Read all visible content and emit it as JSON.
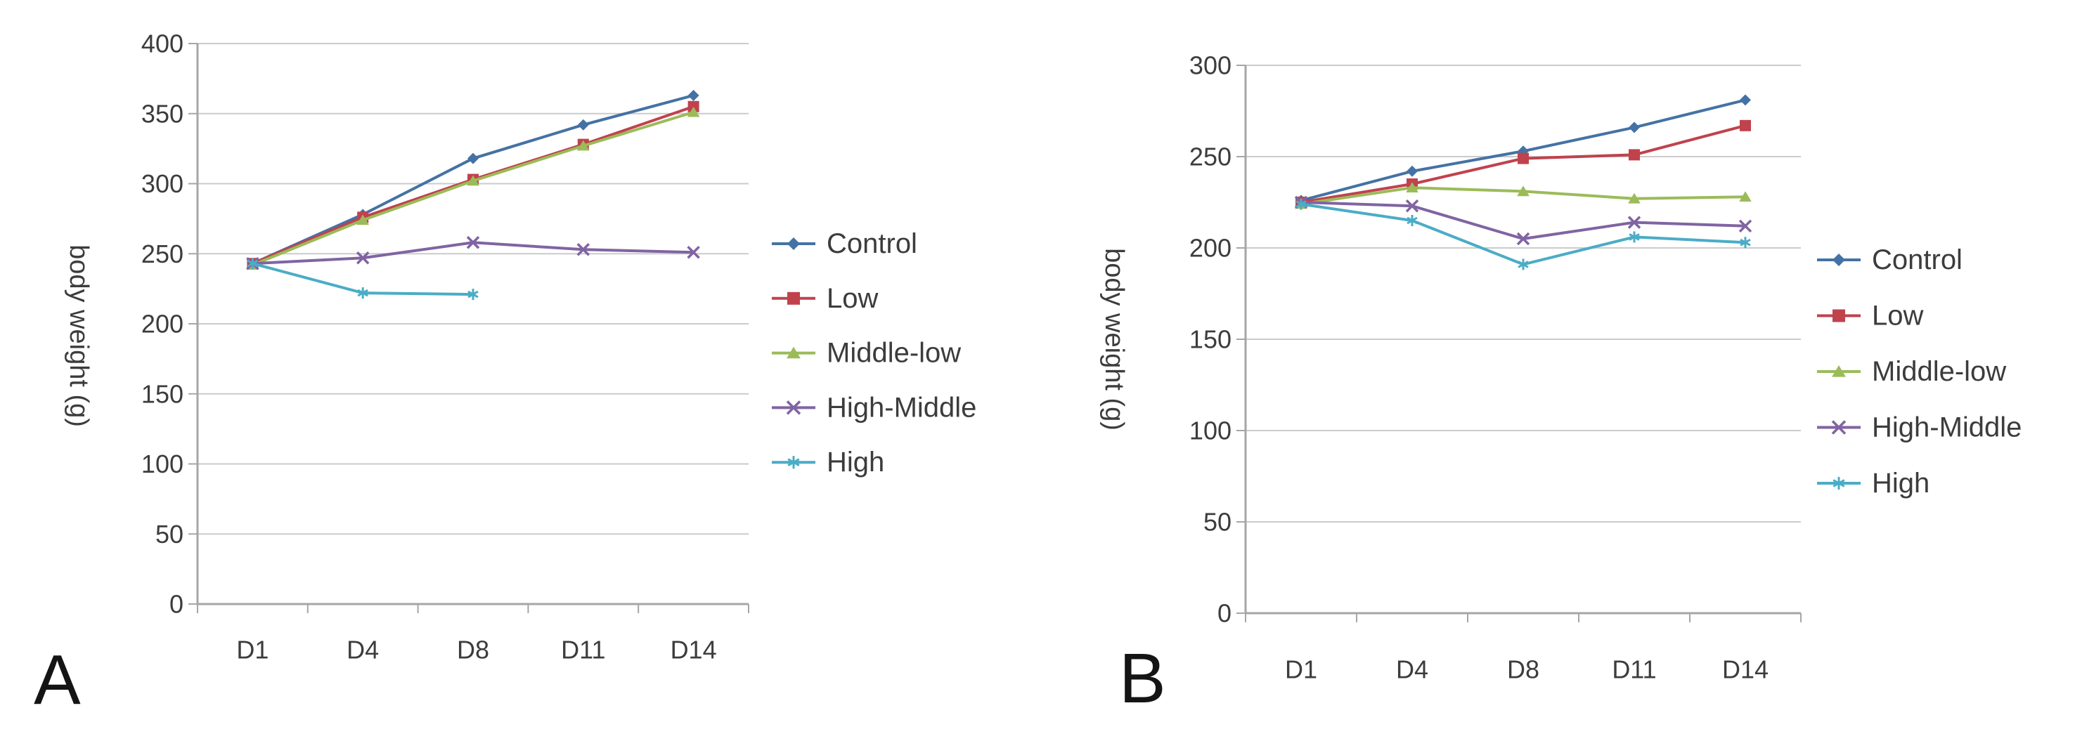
{
  "figure": {
    "background": "#ffffff",
    "text_color": "#3c3c3c",
    "grid_color": "#cbcbcb",
    "axis_color": "#a6a6a6",
    "panels": [
      {
        "label": "A",
        "chart_data": {
          "type": "line",
          "title": "",
          "xlabel": "",
          "ylabel": "body weight (g)",
          "categories": [
            "D1",
            "D4",
            "D8",
            "D11",
            "D14"
          ],
          "ylim": [
            0,
            400
          ],
          "ytick_step": 50,
          "yticks": [
            400,
            350,
            300,
            250,
            200,
            150,
            100,
            50,
            0
          ],
          "grid": true,
          "legend_position": "right",
          "series": [
            {
              "name": "Control",
              "color": "#4472A4",
              "marker": "diamond",
              "values": [
                243,
                278,
                318,
                342,
                363
              ]
            },
            {
              "name": "Low",
              "color": "#C0424D",
              "marker": "square",
              "values": [
                243,
                276,
                303,
                328,
                355
              ]
            },
            {
              "name": "Middle-low",
              "color": "#9BBB59",
              "marker": "triangle",
              "values": [
                242,
                274,
                302,
                327,
                351
              ]
            },
            {
              "name": "High-Middle",
              "color": "#8064A2",
              "marker": "x",
              "values": [
                243,
                247,
                258,
                253,
                251
              ]
            },
            {
              "name": "High",
              "color": "#4BACC6",
              "marker": "asterisk",
              "values": [
                243,
                222,
                221,
                null,
                null
              ]
            }
          ]
        }
      },
      {
        "label": "B",
        "chart_data": {
          "type": "line",
          "title": "",
          "xlabel": "",
          "ylabel": "body weight (g)",
          "categories": [
            "D1",
            "D4",
            "D8",
            "D11",
            "D14"
          ],
          "ylim": [
            0,
            300
          ],
          "ytick_step": 50,
          "yticks": [
            300,
            250,
            200,
            150,
            100,
            50,
            0
          ],
          "grid": true,
          "legend_position": "right",
          "series": [
            {
              "name": "Control",
              "color": "#4472A4",
              "marker": "diamond",
              "values": [
                226,
                242,
                253,
                266,
                281
              ]
            },
            {
              "name": "Low",
              "color": "#C0424D",
              "marker": "square",
              "values": [
                225,
                235,
                249,
                251,
                267
              ]
            },
            {
              "name": "Middle-low",
              "color": "#9BBB59",
              "marker": "triangle",
              "values": [
                224,
                233,
                231,
                227,
                228
              ]
            },
            {
              "name": "High-Middle",
              "color": "#8064A2",
              "marker": "x",
              "values": [
                225,
                223,
                205,
                214,
                212
              ]
            },
            {
              "name": "High",
              "color": "#4BACC6",
              "marker": "asterisk",
              "values": [
                224,
                215,
                191,
                206,
                203
              ]
            }
          ]
        }
      }
    ]
  }
}
